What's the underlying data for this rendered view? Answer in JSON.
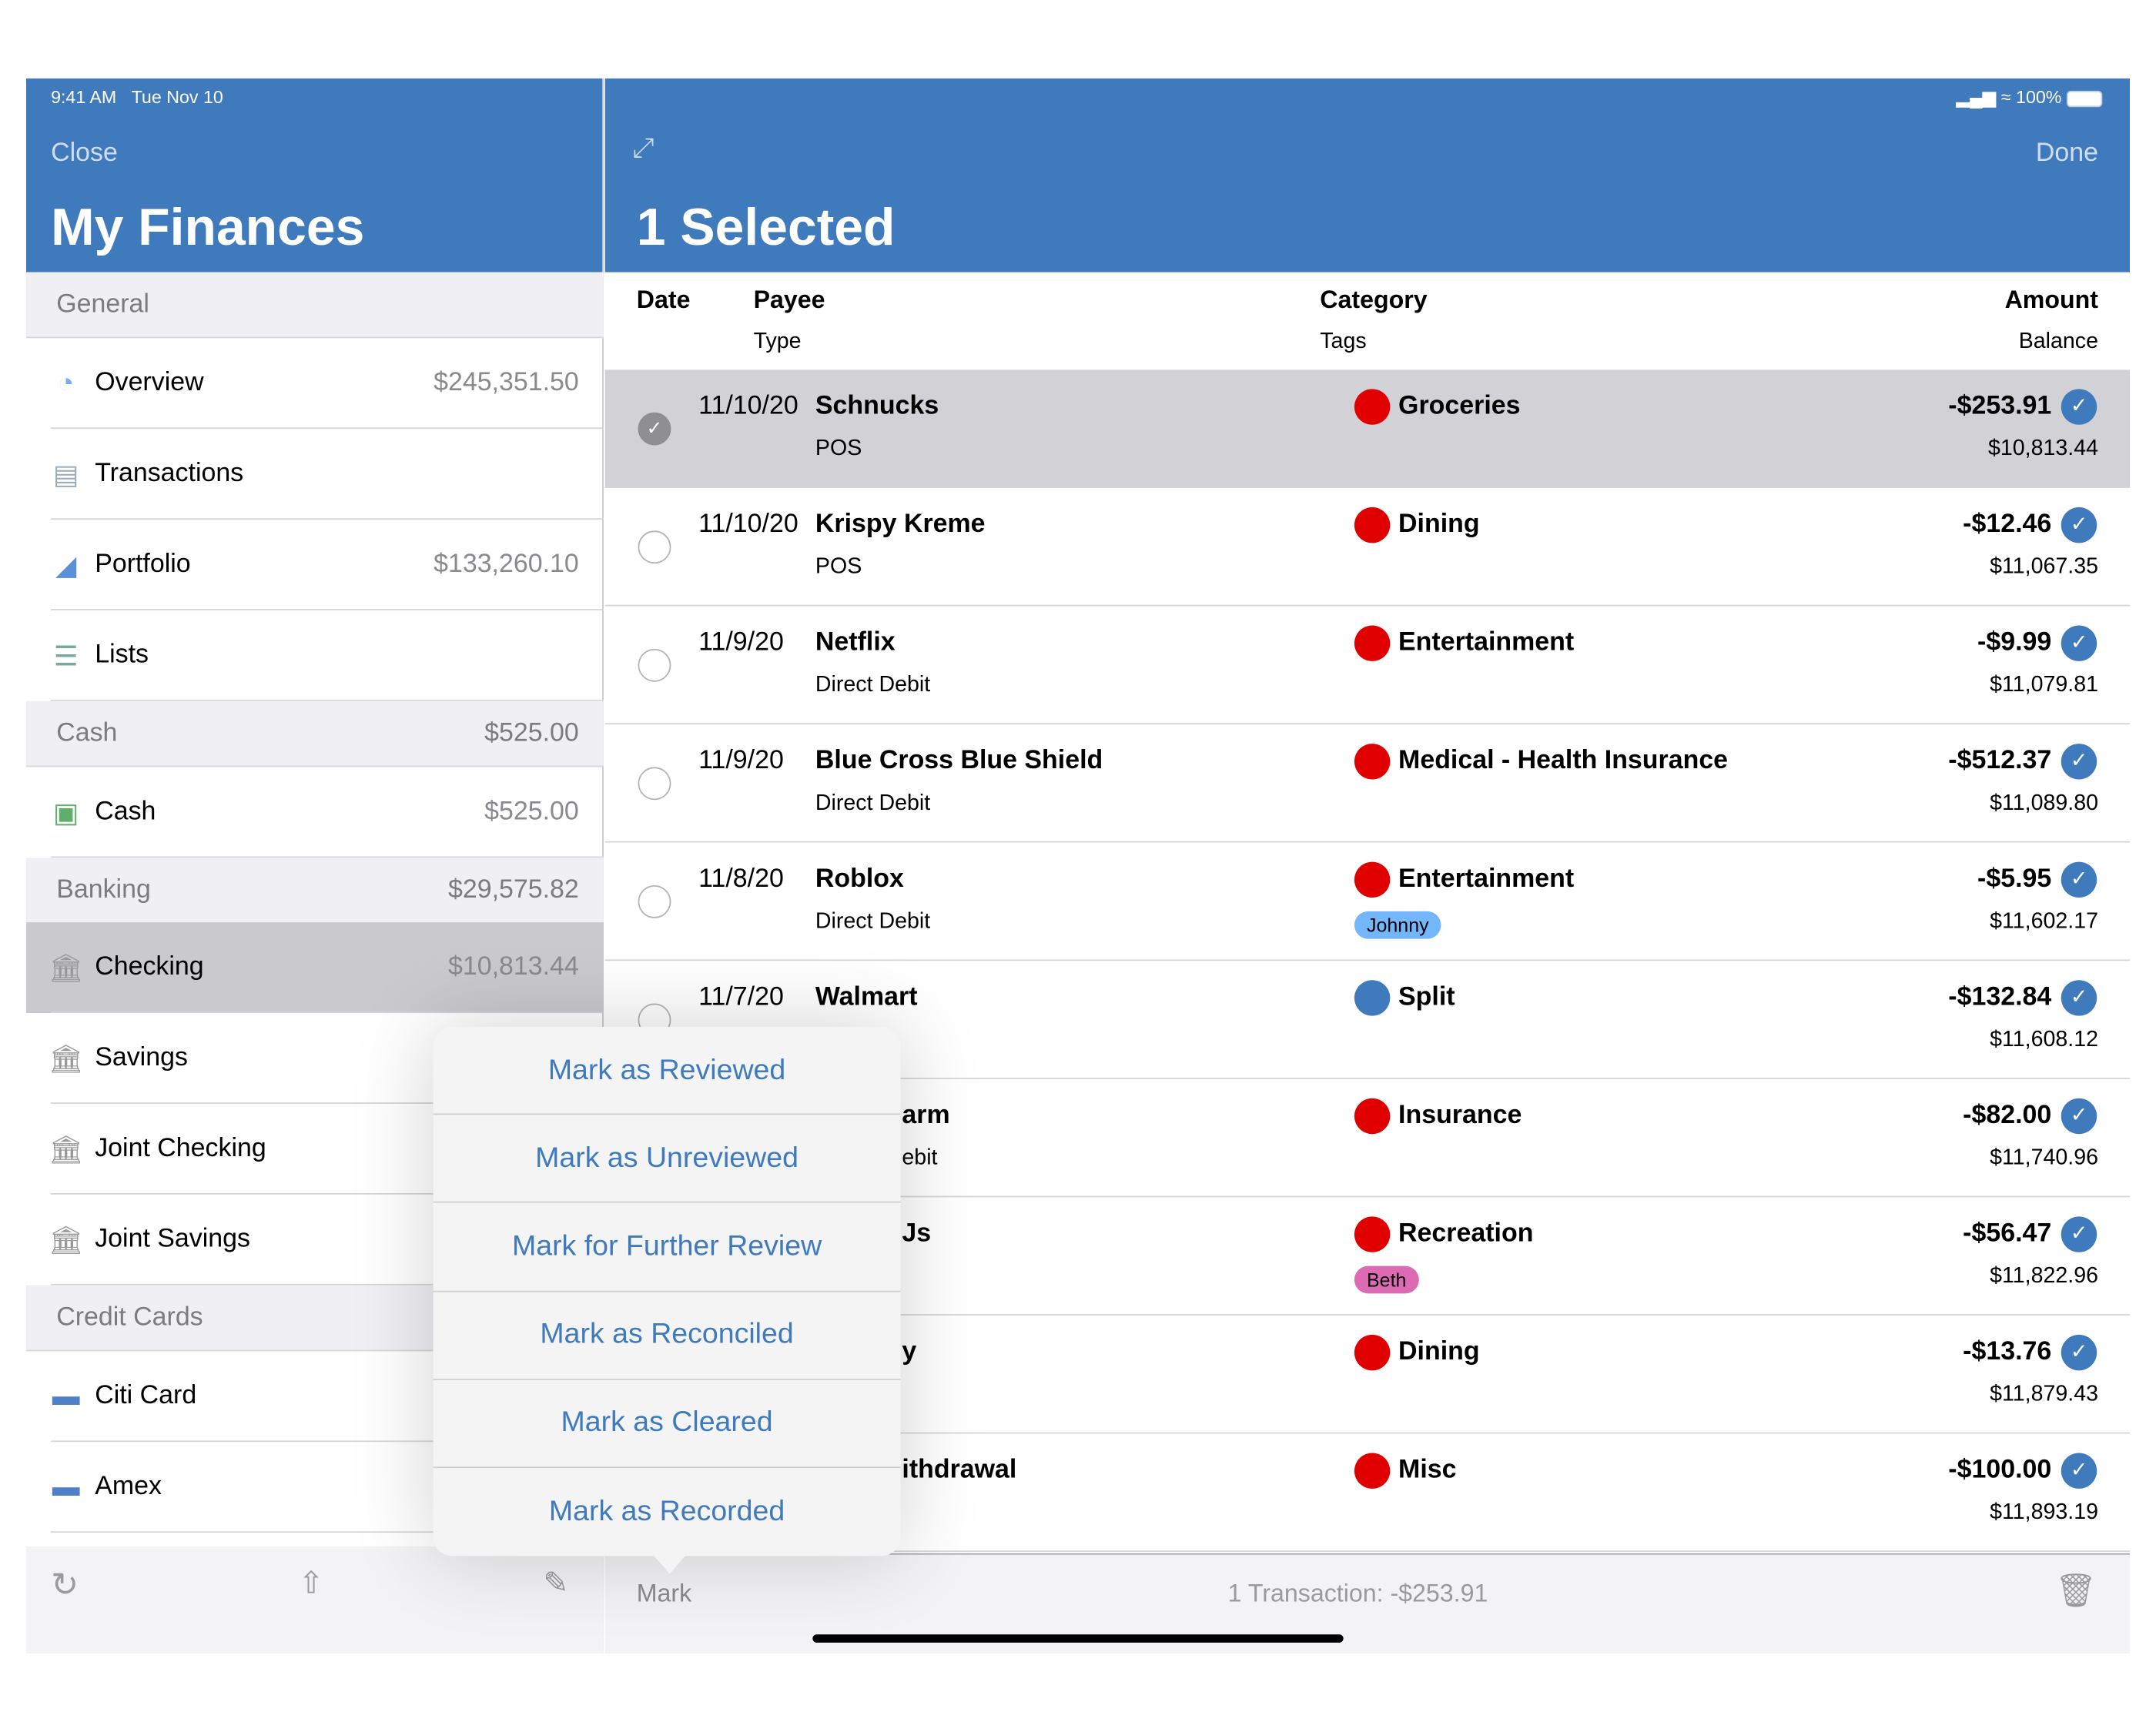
{
  "status": {
    "time": "9:41 AM",
    "date": "Tue Nov 10",
    "battery": "100%"
  },
  "sidebar": {
    "close": "Close",
    "title": "My Finances",
    "sections": [
      {
        "label": "General",
        "total": ""
      },
      {
        "label": "Cash",
        "total": "$525.00"
      },
      {
        "label": "Banking",
        "total": "$29,575.82"
      },
      {
        "label": "Credit Cards",
        "total": ""
      }
    ],
    "items": [
      {
        "label": "Overview",
        "value": "$245,351.50",
        "icon": "pie-chart-icon"
      },
      {
        "label": "Transactions",
        "value": "",
        "icon": "receipt-icon"
      },
      {
        "label": "Portfolio",
        "value": "$133,260.10",
        "icon": "area-chart-icon"
      },
      {
        "label": "Lists",
        "value": "",
        "icon": "list-icon"
      },
      {
        "label": "Cash",
        "value": "$525.00",
        "icon": "cash-icon"
      },
      {
        "label": "Checking",
        "value": "$10,813.44",
        "icon": "bank-icon",
        "selected": true
      },
      {
        "label": "Savings",
        "value": "",
        "icon": "bank-icon"
      },
      {
        "label": "Joint Checking",
        "value": "",
        "icon": "bank-icon"
      },
      {
        "label": "Joint Savings",
        "value": "",
        "icon": "bank-icon"
      },
      {
        "label": "Citi Card",
        "value": "",
        "icon": "credit-card-icon"
      },
      {
        "label": "Amex",
        "value": "",
        "icon": "credit-card-icon"
      }
    ],
    "toolbar_icons": [
      "refresh-icon",
      "share-icon",
      "compose-icon"
    ]
  },
  "main": {
    "done": "Done",
    "title": "1 Selected",
    "columns": {
      "date": "Date",
      "payee": "Payee",
      "type": "Type",
      "category": "Category",
      "tags": "Tags",
      "amount": "Amount",
      "balance": "Balance"
    },
    "rows": [
      {
        "date": "11/10/20",
        "payee": "Schnucks",
        "type": "POS",
        "category": "Groceries",
        "cat_color": "#e00000",
        "tag": "",
        "amount": "-$253.91",
        "balance": "$10,813.44",
        "selected": true
      },
      {
        "date": "11/10/20",
        "payee": "Krispy Kreme",
        "type": "POS",
        "category": "Dining",
        "cat_color": "#e00000",
        "tag": "",
        "amount": "-$12.46",
        "balance": "$11,067.35"
      },
      {
        "date": "11/9/20",
        "payee": "Netflix",
        "type": "Direct Debit",
        "category": "Entertainment",
        "cat_color": "#e00000",
        "tag": "",
        "amount": "-$9.99",
        "balance": "$11,079.81"
      },
      {
        "date": "11/9/20",
        "payee": "Blue Cross Blue Shield",
        "type": "Direct Debit",
        "category": "Medical - Health Insurance",
        "cat_color": "#e00000",
        "tag": "",
        "amount": "-$512.37",
        "balance": "$11,089.80"
      },
      {
        "date": "11/8/20",
        "payee": "Roblox",
        "type": "Direct Debit",
        "category": "Entertainment",
        "cat_color": "#e00000",
        "tag": "Johnny",
        "tag_color": "#74b6fb",
        "amount": "-$5.95",
        "balance": "$11,602.17"
      },
      {
        "date": "11/7/20",
        "payee": "Walmart",
        "type": "",
        "category": "Split",
        "cat_color": "#3f7abd",
        "tag": "",
        "amount": "-$132.84",
        "balance": "$11,608.12"
      },
      {
        "date": "",
        "payee": "arm",
        "type": "ebit",
        "category": "Insurance",
        "cat_color": "#e00000",
        "tag": "",
        "amount": "-$82.00",
        "balance": "$11,740.96"
      },
      {
        "date": "",
        "payee": "Js",
        "type": "",
        "category": "Recreation",
        "cat_color": "#e00000",
        "tag": "Beth",
        "tag_color": "#dc6bb4",
        "amount": "-$56.47",
        "balance": "$11,822.96"
      },
      {
        "date": "",
        "payee": "y",
        "type": "",
        "category": "Dining",
        "cat_color": "#e00000",
        "tag": "",
        "amount": "-$13.76",
        "balance": "$11,879.43"
      },
      {
        "date": "",
        "payee": "ithdrawal",
        "type": "",
        "category": "Misc",
        "cat_color": "#e00000",
        "tag": "",
        "amount": "-$100.00",
        "balance": "$11,893.19"
      }
    ],
    "toolbar": {
      "mark": "Mark",
      "summary": "1 Transaction: -$253.91"
    }
  },
  "popover": {
    "items": [
      "Mark as Reviewed",
      "Mark as Unreviewed",
      "Mark for Further Review",
      "Mark as Reconciled",
      "Mark as Cleared",
      "Mark as Recorded"
    ]
  },
  "colors": {
    "accent": "#3f7abd",
    "selected_row": "#d1d1d6"
  }
}
